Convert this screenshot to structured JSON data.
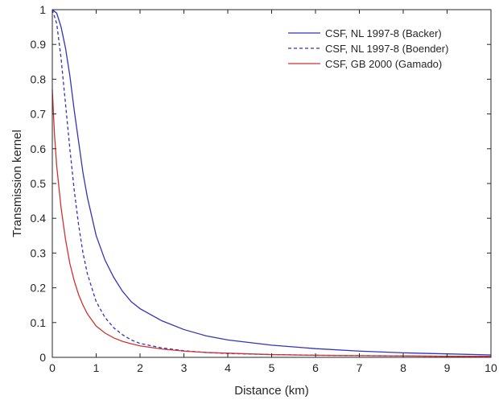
{
  "chart_data": {
    "type": "line",
    "title": "",
    "xlabel": "Distance (km)",
    "ylabel": "Transmission kernel",
    "xlim": [
      0,
      10
    ],
    "ylim": [
      0,
      1
    ],
    "xticks": [
      0,
      1,
      2,
      3,
      4,
      5,
      6,
      7,
      8,
      9,
      10
    ],
    "xtick_labels": [
      "0",
      "1",
      "2",
      "3",
      "4",
      "5",
      "6",
      "7",
      "8",
      "9",
      "10"
    ],
    "yticks": [
      0,
      0.1,
      0.2,
      0.3,
      0.4,
      0.5,
      0.6,
      0.7,
      0.8,
      0.9,
      1
    ],
    "ytick_labels": [
      "0",
      "0.1",
      "0.2",
      "0.3",
      "0.4",
      "0.5",
      "0.6",
      "0.7",
      "0.8",
      "0.9",
      "1"
    ],
    "grid": false,
    "legend_position": "top-right",
    "series": [
      {
        "name": "CSF, NL 1997-8 (Backer)",
        "color": "#3333bb",
        "style": "solid",
        "x": [
          0,
          0.1,
          0.2,
          0.3,
          0.4,
          0.5,
          0.6,
          0.7,
          0.8,
          1,
          1.2,
          1.4,
          1.6,
          1.8,
          2,
          2.5,
          3,
          3.5,
          4,
          5,
          6,
          7,
          8,
          9,
          10
        ],
        "y": [
          1,
          0.99,
          0.95,
          0.89,
          0.81,
          0.71,
          0.62,
          0.53,
          0.46,
          0.35,
          0.28,
          0.23,
          0.19,
          0.16,
          0.14,
          0.105,
          0.08,
          0.062,
          0.05,
          0.035,
          0.025,
          0.018,
          0.013,
          0.01,
          0.007
        ]
      },
      {
        "name": "CSF, NL 1997-8 (Boender)",
        "color": "#3333bb",
        "style": "dashed",
        "x": [
          0,
          0.1,
          0.2,
          0.3,
          0.4,
          0.5,
          0.6,
          0.7,
          0.8,
          1,
          1.2,
          1.4,
          1.6,
          1.8,
          2,
          2.5,
          3,
          3.5,
          4,
          5,
          6,
          7,
          8,
          9,
          10
        ],
        "y": [
          1,
          0.96,
          0.86,
          0.73,
          0.6,
          0.48,
          0.38,
          0.3,
          0.24,
          0.16,
          0.115,
          0.085,
          0.065,
          0.05,
          0.04,
          0.027,
          0.019,
          0.014,
          0.011,
          0.008,
          0.006,
          0.005,
          0.004,
          0.003,
          0.003
        ]
      },
      {
        "name": "CSF, GB 2000 (Gamado)",
        "color": "#cc3333",
        "style": "solid",
        "x": [
          0,
          0.05,
          0.1,
          0.2,
          0.3,
          0.4,
          0.5,
          0.6,
          0.7,
          0.8,
          1,
          1.2,
          1.4,
          1.6,
          1.8,
          2,
          2.5,
          3,
          3.5,
          4,
          5,
          6,
          7,
          8,
          9,
          10
        ],
        "y": [
          0.77,
          0.64,
          0.55,
          0.43,
          0.34,
          0.27,
          0.22,
          0.18,
          0.15,
          0.125,
          0.09,
          0.07,
          0.056,
          0.046,
          0.039,
          0.033,
          0.024,
          0.018,
          0.014,
          0.012,
          0.008,
          0.006,
          0.005,
          0.004,
          0.003,
          0.003
        ]
      }
    ]
  }
}
